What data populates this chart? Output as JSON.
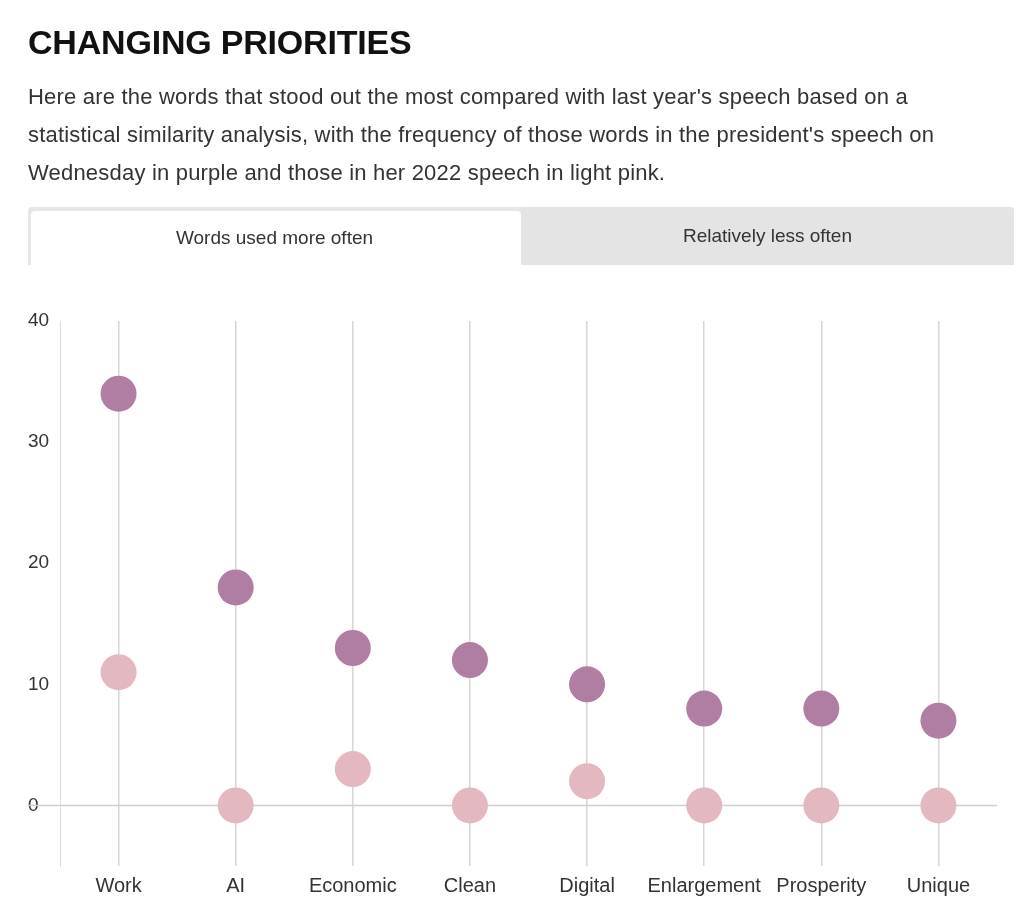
{
  "chart_data": {
    "type": "scatter",
    "title": "CHANGING PRIORITIES",
    "subtitle": "Here are the words that stood out the most compared with last year's speech based on a statistical similarity analysis, with the frequency of those words in the president's speech on Wednesday in purple and those in her 2022 speech in light pink.",
    "annotations": [
      "Words used more often",
      "Relatively less often"
    ],
    "categories": [
      "Work",
      "AI",
      "Economic",
      "Clean",
      "Digital",
      "Enlargement",
      "Prosperity",
      "Unique"
    ],
    "series": [
      {
        "color": "#b07da3",
        "values": [
          34,
          18,
          13,
          12,
          10,
          8,
          8,
          7
        ]
      },
      {
        "color": "#e3b8c1",
        "values": [
          11,
          0,
          3,
          0,
          2,
          0,
          0,
          0
        ]
      }
    ],
    "ylim": [
      -5,
      40
    ],
    "yticks": [
      0,
      10,
      20,
      30,
      40
    ],
    "grid": "x",
    "marker": "circle",
    "ref_lines": [
      {
        "axis": "y",
        "value": 0,
        "color": "#cfcfcf"
      }
    ]
  }
}
